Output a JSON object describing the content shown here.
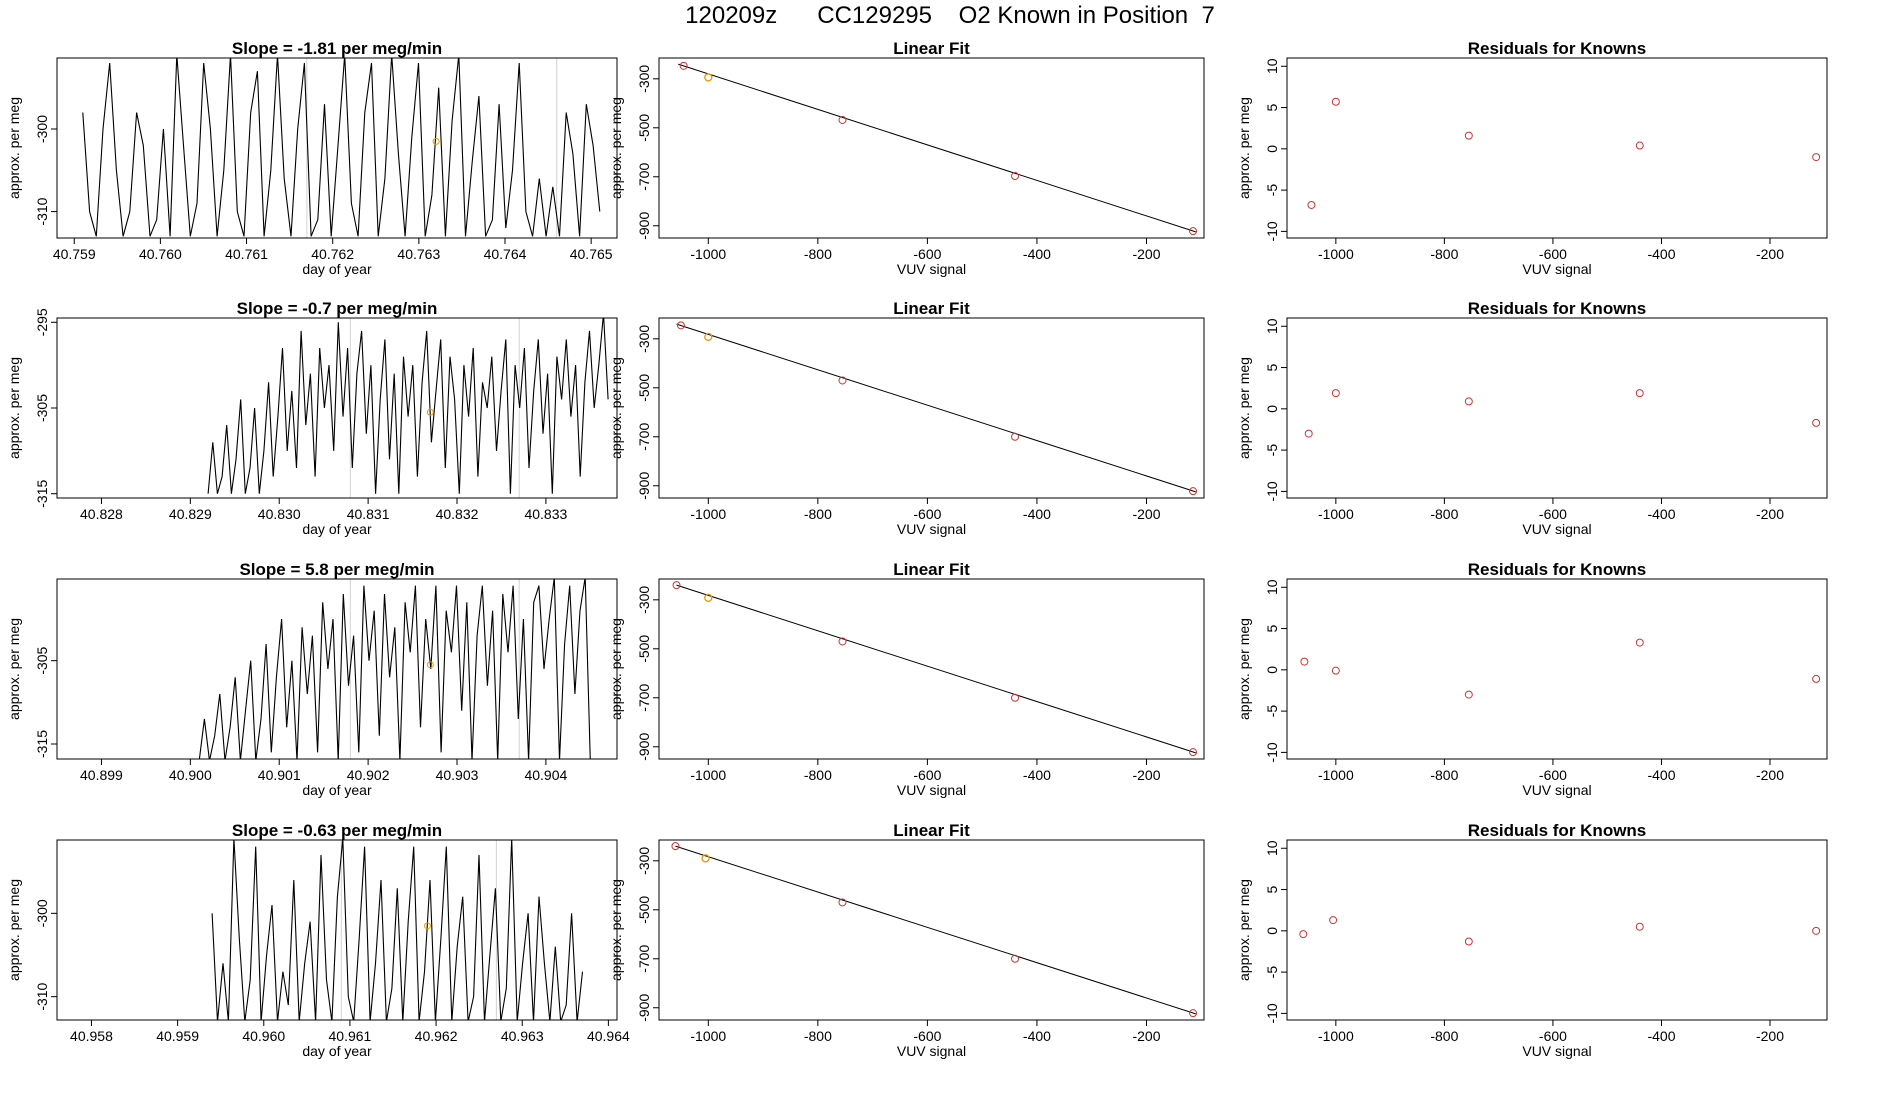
{
  "page": {
    "title": "120209z      CC129295    O2 Known in Position  7"
  },
  "colors": {
    "line": "#000000",
    "known_marker": "#cd3333",
    "current_marker": "#ee9a00",
    "vline": "#d3d3d3",
    "axis": "#000000"
  },
  "chart_data": [
    {
      "type": "line",
      "title": "Slope =  -1.81  per meg/min",
      "xlabel": "day of year",
      "ylabel": "approx. per meg",
      "xlim": [
        40.7588,
        40.7653
      ],
      "ylim": [
        -313.2,
        -291.4
      ],
      "xticks": [
        "40.759",
        "40.760",
        "40.761",
        "40.762",
        "40.763",
        "40.764",
        "40.765"
      ],
      "yticks": [
        "-300",
        "-310"
      ],
      "vlines": [
        40.7617,
        40.7646
      ],
      "point": {
        "x": 40.7632,
        "y": -301.5
      },
      "series": {
        "name": "signal",
        "x0": 40.7591,
        "x1": 40.7651,
        "values": [
          -298,
          -310,
          -313,
          -300,
          -292,
          -305,
          -313,
          -310,
          -298,
          -302,
          -313,
          -311,
          -300,
          -313,
          -291,
          -302,
          -313,
          -309,
          -292,
          -300,
          -313,
          -305,
          -291,
          -310,
          -313,
          -298,
          -293,
          -313,
          -305,
          -291,
          -306,
          -313,
          -300,
          -292,
          -313,
          -311,
          -297,
          -313,
          -302,
          -291,
          -309,
          -313,
          -298,
          -292,
          -313,
          -306,
          -291,
          -303,
          -313,
          -301,
          -292,
          -313,
          -308,
          -295,
          -313,
          -299,
          -291,
          -313,
          -304,
          -296,
          -313,
          -311,
          -297,
          -312,
          -305,
          -292,
          -310,
          -313,
          -306,
          -313,
          -307,
          -313,
          -298,
          -303,
          -313,
          -297,
          -302,
          -310
        ]
      }
    },
    {
      "type": "scatter-fit",
      "title": "Linear Fit",
      "xlabel": "VUV signal",
      "ylabel": "approx. per meg",
      "xlim": [
        -1090,
        -95
      ],
      "ylim": [
        -950,
        -215
      ],
      "xticks": [
        -1000,
        -800,
        -600,
        -400,
        -200
      ],
      "yticks": [
        -300,
        -500,
        -700,
        -900
      ],
      "points": [
        {
          "x": -1045,
          "y": -247
        },
        {
          "x": -1000,
          "y": -294
        },
        {
          "x": -755,
          "y": -468
        },
        {
          "x": -440,
          "y": -697
        },
        {
          "x": -115,
          "y": -922
        }
      ],
      "current": {
        "x": -1000,
        "y": -294
      },
      "fit": {
        "x0": -1055,
        "y0": -240,
        "x1": -110,
        "y1": -925
      }
    },
    {
      "type": "scatter",
      "title": "Residuals for Knowns",
      "xlabel": "VUV signal",
      "ylabel": "approx. per meg",
      "xlim": [
        -1090,
        -95
      ],
      "ylim": [
        -10.8,
        11
      ],
      "xticks": [
        -1000,
        -800,
        -600,
        -400,
        -200
      ],
      "yticks": [
        10,
        5,
        0,
        -5,
        -10
      ],
      "points": [
        {
          "x": -1045,
          "y": -6.8
        },
        {
          "x": -1000,
          "y": 5.7
        },
        {
          "x": -755,
          "y": 1.6
        },
        {
          "x": -440,
          "y": 0.4
        },
        {
          "x": -115,
          "y": -1.0
        }
      ]
    },
    {
      "type": "line",
      "title": "Slope =  -0.7  per meg/min",
      "xlabel": "day of year",
      "ylabel": "approx. per meg",
      "xlim": [
        40.8275,
        40.8338
      ],
      "ylim": [
        -315.5,
        -294.5
      ],
      "xticks": [
        "40.828",
        "40.829",
        "40.830",
        "40.831",
        "40.832",
        "40.833"
      ],
      "yticks": [
        "-295",
        "-305",
        "-315"
      ],
      "vlines": [
        40.8308,
        40.8327
      ],
      "point": {
        "x": 40.8317,
        "y": -305.5
      },
      "series": {
        "name": "signal",
        "x0": 40.8292,
        "x1": 40.8337,
        "values": [
          -315,
          -309,
          -315,
          -313,
          -307,
          -315,
          -311,
          -304,
          -315,
          -312,
          -305,
          -315,
          -310,
          -302,
          -313,
          -306,
          -298,
          -310,
          -303,
          -312,
          -296,
          -307,
          -301,
          -313,
          -298,
          -305,
          -300,
          -310,
          -295,
          -306,
          -298,
          -312,
          -301,
          -296,
          -308,
          -300,
          -315,
          -304,
          -297,
          -311,
          -301,
          -315,
          -299,
          -306,
          -300,
          -313,
          -302,
          -296,
          -309,
          -303,
          -297,
          -312,
          -299,
          -304,
          -315,
          -300,
          -306,
          -298,
          -313,
          -302,
          -305,
          -299,
          -310,
          -303,
          -297,
          -315,
          -300,
          -305,
          -298,
          -312,
          -303,
          -297,
          -308,
          -301,
          -315,
          -299,
          -304,
          -297,
          -306,
          -300,
          -313,
          -302,
          -296,
          -305,
          -300,
          -294,
          -304
        ]
      }
    },
    {
      "type": "scatter-fit",
      "title": "Linear Fit",
      "xlabel": "VUV signal",
      "ylabel": "approx. per meg",
      "xlim": [
        -1090,
        -95
      ],
      "ylim": [
        -950,
        -215
      ],
      "xticks": [
        -1000,
        -800,
        -600,
        -400,
        -200
      ],
      "yticks": [
        -300,
        -500,
        -700,
        -900
      ],
      "points": [
        {
          "x": -1050,
          "y": -245
        },
        {
          "x": -1000,
          "y": -292
        },
        {
          "x": -755,
          "y": -470
        },
        {
          "x": -440,
          "y": -700
        },
        {
          "x": -115,
          "y": -922
        }
      ],
      "current": {
        "x": -1000,
        "y": -292
      },
      "fit": {
        "x0": -1058,
        "y0": -240,
        "x1": -110,
        "y1": -925
      }
    },
    {
      "type": "scatter",
      "title": "Residuals for Knowns",
      "xlabel": "VUV signal",
      "ylabel": "approx. per meg",
      "xlim": [
        -1090,
        -95
      ],
      "ylim": [
        -10.8,
        11
      ],
      "xticks": [
        -1000,
        -800,
        -600,
        -400,
        -200
      ],
      "yticks": [
        10,
        5,
        0,
        -5,
        -10
      ],
      "points": [
        {
          "x": -1050,
          "y": -3.0
        },
        {
          "x": -1000,
          "y": 1.9
        },
        {
          "x": -755,
          "y": 0.9
        },
        {
          "x": -440,
          "y": 1.9
        },
        {
          "x": -115,
          "y": -1.7
        }
      ]
    },
    {
      "type": "line",
      "title": "Slope =  5.8  per meg/min",
      "xlabel": "day of year",
      "ylabel": "approx. per meg",
      "xlim": [
        40.8985,
        40.9048
      ],
      "ylim": [
        -316.8,
        -295.2
      ],
      "xticks": [
        "40.899",
        "40.900",
        "40.901",
        "40.902",
        "40.903",
        "40.904"
      ],
      "yticks": [
        "-305",
        "-315"
      ],
      "vlines": [
        40.9018,
        40.9037
      ],
      "point": {
        "x": 40.9027,
        "y": -305.5
      },
      "series": {
        "name": "signal",
        "x0": 40.9001,
        "x1": 40.9045,
        "values": [
          -317,
          -312,
          -317,
          -314,
          -309,
          -317,
          -313,
          -307,
          -317,
          -311,
          -305,
          -317,
          -312,
          -303,
          -316,
          -307,
          -300,
          -313,
          -305,
          -317,
          -301,
          -309,
          -302,
          -316,
          -298,
          -306,
          -300,
          -317,
          -297,
          -308,
          -302,
          -316,
          -296,
          -305,
          -299,
          -314,
          -297,
          -307,
          -301,
          -317,
          -298,
          -304,
          -296,
          -313,
          -300,
          -306,
          -296,
          -316,
          -299,
          -304,
          -296,
          -311,
          -298,
          -317,
          -302,
          -296,
          -308,
          -299,
          -317,
          -297,
          -304,
          -296,
          -312,
          -300,
          -317,
          -298,
          -296,
          -306,
          -300,
          -295,
          -317,
          -303,
          -296,
          -309,
          -299,
          -295,
          -317
        ]
      }
    },
    {
      "type": "scatter-fit",
      "title": "Linear Fit",
      "xlabel": "VUV signal",
      "ylabel": "approx. per meg",
      "xlim": [
        -1090,
        -95
      ],
      "ylim": [
        -950,
        -215
      ],
      "xticks": [
        -1000,
        -800,
        -600,
        -400,
        -200
      ],
      "yticks": [
        -300,
        -500,
        -700,
        -900
      ],
      "points": [
        {
          "x": -1058,
          "y": -240
        },
        {
          "x": -1000,
          "y": -292
        },
        {
          "x": -755,
          "y": -470
        },
        {
          "x": -440,
          "y": -700
        },
        {
          "x": -115,
          "y": -922
        }
      ],
      "current": {
        "x": -1000,
        "y": -292
      },
      "fit": {
        "x0": -1058,
        "y0": -240,
        "x1": -110,
        "y1": -925
      }
    },
    {
      "type": "scatter",
      "title": "Residuals for Knowns",
      "xlabel": "VUV signal",
      "ylabel": "approx. per meg",
      "xlim": [
        -1090,
        -95
      ],
      "ylim": [
        -10.8,
        11
      ],
      "xticks": [
        -1000,
        -800,
        -600,
        -400,
        -200
      ],
      "yticks": [
        10,
        5,
        0,
        -5,
        -10
      ],
      "points": [
        {
          "x": -1058,
          "y": 1.0
        },
        {
          "x": -1000,
          "y": -0.1
        },
        {
          "x": -755,
          "y": -3.0
        },
        {
          "x": -440,
          "y": 3.3
        },
        {
          "x": -115,
          "y": -1.1
        }
      ]
    },
    {
      "type": "line",
      "title": "Slope =  -0.63  per meg/min",
      "xlabel": "day of year",
      "ylabel": "approx. per meg",
      "xlim": [
        40.9576,
        40.9641
      ],
      "ylim": [
        -312.8,
        -291.2
      ],
      "xticks": [
        "40.958",
        "40.959",
        "40.960",
        "40.961",
        "40.962",
        "40.963",
        "40.964"
      ],
      "yticks": [
        "-300",
        "-310"
      ],
      "vlines": [
        40.9609,
        40.9627
      ],
      "point": {
        "x": 40.9619,
        "y": -301.5
      },
      "series": {
        "name": "signal",
        "x0": 40.9594,
        "x1": 40.9637,
        "values": [
          -300,
          -313,
          -306,
          -313,
          -291,
          -303,
          -313,
          -308,
          -292,
          -313,
          -305,
          -299,
          -313,
          -307,
          -311,
          -296,
          -313,
          -306,
          -301,
          -313,
          -293,
          -308,
          -313,
          -298,
          -291,
          -310,
          -313,
          -303,
          -292,
          -313,
          -306,
          -296,
          -313,
          -309,
          -297,
          -313,
          -301,
          -292,
          -313,
          -307,
          -296,
          -313,
          -303,
          -292,
          -313,
          -304,
          -298,
          -313,
          -310,
          -293,
          -313,
          -305,
          -297,
          -313,
          -309,
          -291,
          -313,
          -306,
          -300,
          -313,
          -298,
          -306,
          -313,
          -304,
          -313,
          -311,
          -300,
          -313,
          -307
        ]
      }
    },
    {
      "type": "scatter-fit",
      "title": "Linear Fit",
      "xlabel": "VUV signal",
      "ylabel": "approx. per meg",
      "xlim": [
        -1090,
        -95
      ],
      "ylim": [
        -950,
        -215
      ],
      "xticks": [
        -1000,
        -800,
        -600,
        -400,
        -200
      ],
      "yticks": [
        -300,
        -500,
        -700,
        -900
      ],
      "points": [
        {
          "x": -1060,
          "y": -240
        },
        {
          "x": -1005,
          "y": -290
        },
        {
          "x": -755,
          "y": -470
        },
        {
          "x": -440,
          "y": -700
        },
        {
          "x": -115,
          "y": -922
        }
      ],
      "current": {
        "x": -1005,
        "y": -290
      },
      "fit": {
        "x0": -1060,
        "y0": -240,
        "x1": -110,
        "y1": -925
      }
    },
    {
      "type": "scatter",
      "title": "Residuals for Knowns",
      "xlabel": "VUV signal",
      "ylabel": "approx. per meg",
      "xlim": [
        -1090,
        -95
      ],
      "ylim": [
        -10.8,
        11
      ],
      "xticks": [
        -1000,
        -800,
        -600,
        -400,
        -200
      ],
      "yticks": [
        10,
        5,
        0,
        -5,
        -10
      ],
      "points": [
        {
          "x": -1060,
          "y": -0.4
        },
        {
          "x": -1005,
          "y": 1.3
        },
        {
          "x": -755,
          "y": -1.3
        },
        {
          "x": -440,
          "y": 0.5
        },
        {
          "x": -115,
          "y": 0.0
        }
      ]
    }
  ]
}
